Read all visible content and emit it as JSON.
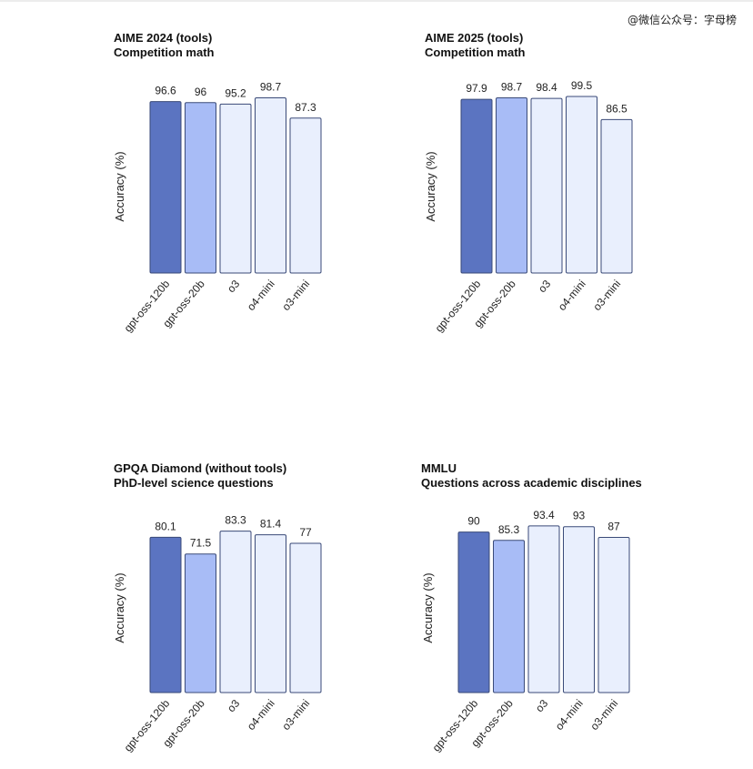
{
  "watermark": "@微信公众号：字母榜",
  "colors": {
    "gpt-oss-120b": "#5b74c1",
    "gpt-oss-20b": "#a8bcf6",
    "o3": "#e9effd",
    "o4-mini": "#e9effd",
    "o3-mini": "#e9effd",
    "stroke": "#3a4a78"
  },
  "chart_data": [
    {
      "type": "bar",
      "title": "AIME 2024 (tools)",
      "subtitle": "Competition math",
      "ylabel": "Accuracy (%)",
      "categories": [
        "gpt-oss-120b",
        "gpt-oss-20b",
        "o3",
        "o4-mini",
        "o3-mini"
      ],
      "values": [
        96.6,
        96,
        95.2,
        98.7,
        87.3
      ],
      "value_labels": [
        "96.6",
        "96",
        "95.2",
        "98.7",
        "87.3"
      ],
      "ylim": [
        0,
        100
      ],
      "grid": false,
      "legend": "none"
    },
    {
      "type": "bar",
      "title": "AIME 2025 (tools)",
      "subtitle": "Competition math",
      "ylabel": "Accuracy (%)",
      "categories": [
        "gpt-oss-120b",
        "gpt-oss-20b",
        "o3",
        "o4-mini",
        "o3-mini"
      ],
      "values": [
        97.9,
        98.7,
        98.4,
        99.5,
        86.5
      ],
      "value_labels": [
        "97.9",
        "98.7",
        "98.4",
        "99.5",
        "86.5"
      ],
      "ylim": [
        0,
        100
      ],
      "grid": false,
      "legend": "none"
    },
    {
      "type": "bar",
      "title": "GPQA Diamond (without tools)",
      "subtitle": "PhD-level science questions",
      "ylabel": "Accuracy (%)",
      "categories": [
        "gpt-oss-120b",
        "gpt-oss-20b",
        "o3",
        "o4-mini",
        "o3-mini"
      ],
      "values": [
        80.1,
        71.5,
        83.3,
        81.4,
        77
      ],
      "value_labels": [
        "80.1",
        "71.5",
        "83.3",
        "81.4",
        "77"
      ],
      "ylim": [
        0,
        100
      ],
      "grid": false,
      "legend": "none"
    },
    {
      "type": "bar",
      "title": "MMLU",
      "subtitle": "Questions across academic disciplines",
      "ylabel": "Accuracy (%)",
      "categories": [
        "gpt-oss-120b",
        "gpt-oss-20b",
        "o3",
        "o4-mini",
        "o3-mini"
      ],
      "values": [
        90,
        85.3,
        93.4,
        93,
        87
      ],
      "value_labels": [
        "90",
        "85.3",
        "93.4",
        "93",
        "87"
      ],
      "ylim": [
        0,
        100
      ],
      "grid": false,
      "legend": "none"
    }
  ]
}
